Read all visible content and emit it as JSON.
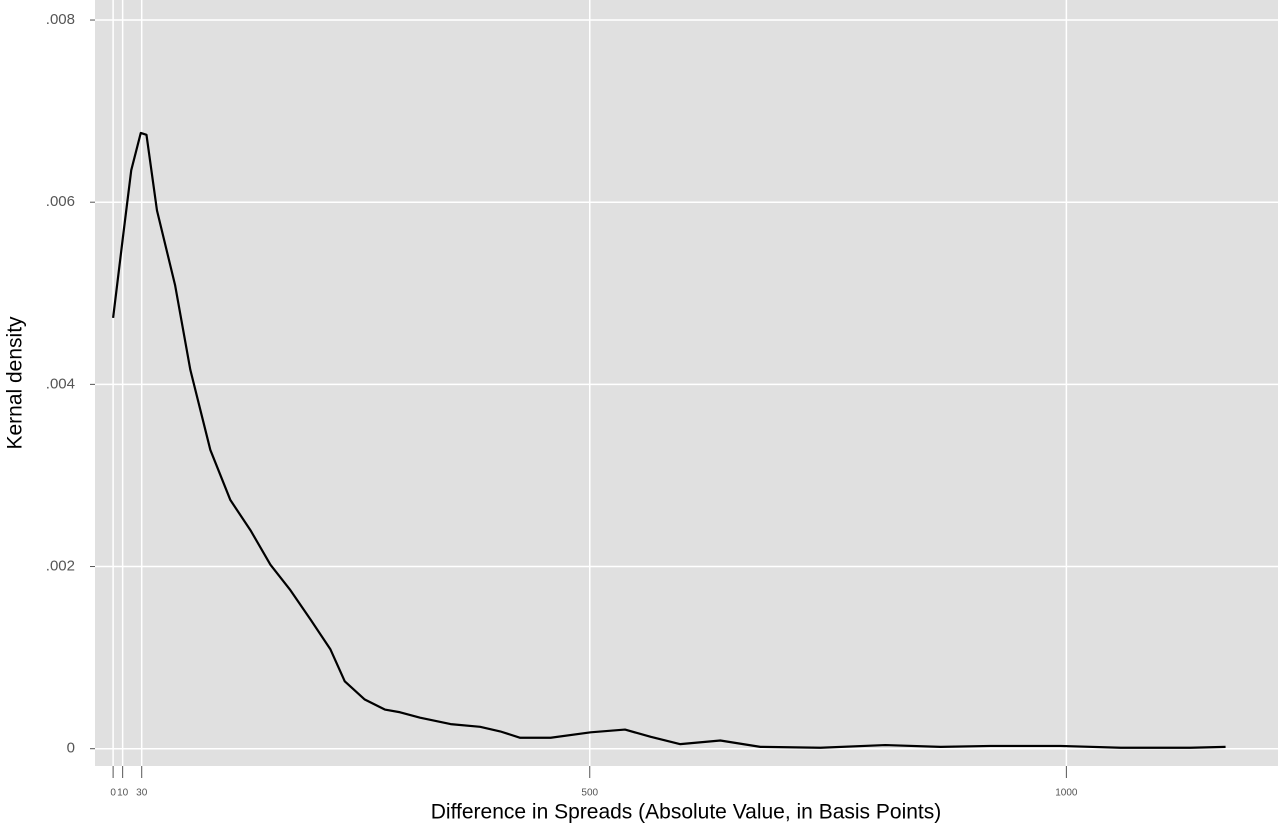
{
  "chart_data": {
    "type": "line",
    "xlabel": "Difference in Spreads (Absolute Value, in Basis Points)",
    "ylabel": "Kernal density",
    "x": [
      0,
      10,
      19,
      29,
      35,
      46,
      65,
      81,
      102,
      123,
      144,
      165,
      186,
      207,
      228,
      243,
      264,
      285,
      301,
      322,
      354,
      385,
      406,
      427,
      459,
      501,
      537,
      564,
      595,
      637,
      679,
      742,
      810,
      868,
      920,
      994,
      1057,
      1130,
      1167
    ],
    "series": [
      {
        "name": "density",
        "color": "#000000",
        "values": [
          0.00473,
          0.00559,
          0.00635,
          0.00676,
          0.00674,
          0.00591,
          0.00509,
          0.00416,
          0.00328,
          0.00273,
          0.0024,
          0.00202,
          0.00174,
          0.00142,
          0.00109,
          0.00074,
          0.00054,
          0.00043,
          0.0004,
          0.00034,
          0.00027,
          0.00024,
          0.00019,
          0.00012,
          0.00012,
          0.00018,
          0.00021,
          0.00013,
          5e-05,
          9e-05,
          2e-05,
          1e-05,
          4e-05,
          2e-05,
          3e-05,
          3e-05,
          1e-05,
          1e-05,
          2e-05
        ]
      }
    ],
    "xlim": [
      -19,
      1222
    ],
    "ylim": [
      -0.00019,
      0.00822
    ],
    "xticks": [
      0,
      10,
      30,
      500,
      1000
    ],
    "yticks": [
      0,
      {
        "value": 0.002,
        "label": ".002"
      },
      {
        "value": 0.004,
        "label": ".004"
      },
      {
        "value": 0.006,
        "label": ".006"
      },
      {
        "value": 0.008,
        "label": ".008"
      }
    ],
    "grid": true,
    "background": "#e0e0e0"
  }
}
